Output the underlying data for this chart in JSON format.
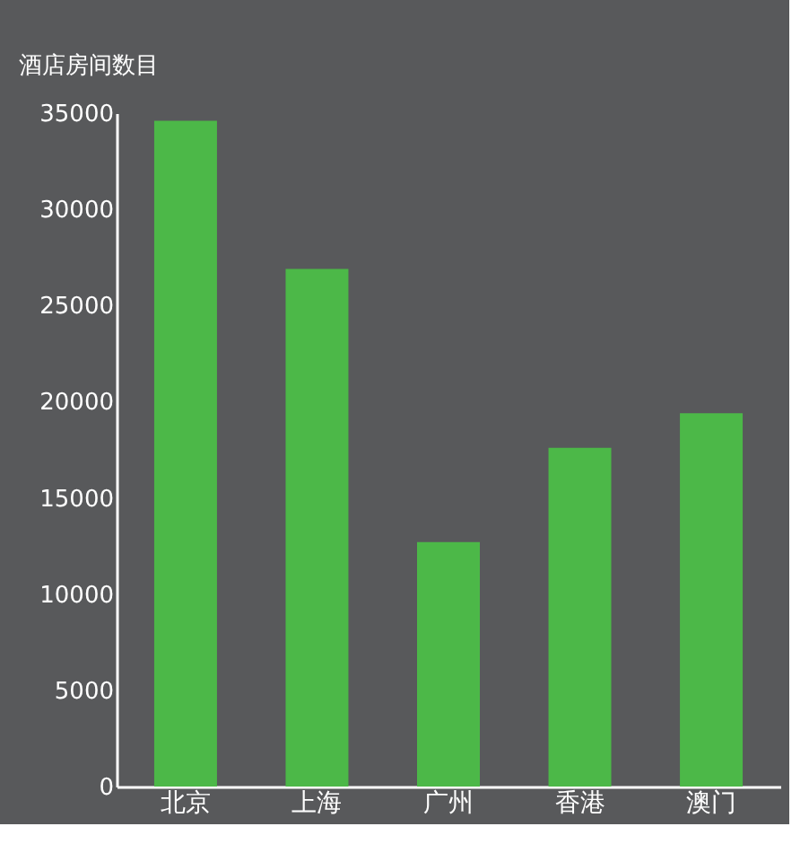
{
  "chart_data": {
    "type": "bar",
    "ylabel": "酒店房间数目",
    "categories": [
      "北京",
      "上海",
      "广州",
      "香港",
      "澳门"
    ],
    "values": [
      34600,
      26900,
      12700,
      17600,
      19400
    ],
    "color": "#4cb848",
    "ylim": [
      0,
      35000
    ],
    "yticks": [
      0,
      5000,
      10000,
      15000,
      20000,
      25000,
      30000,
      35000
    ],
    "grid": false
  }
}
